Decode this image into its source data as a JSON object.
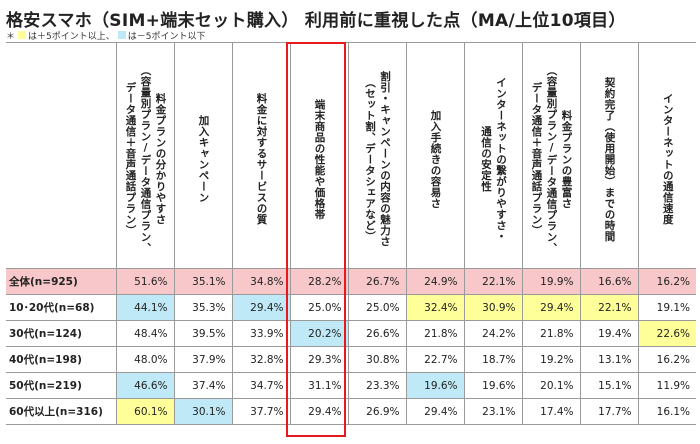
{
  "title": "格安スマホ（SIM+端末セット購入） 利用前に重視した点（MA/上位10項目）",
  "legend": {
    "asterisk": "＊",
    "high_label": "は＋5ポイント以上、",
    "low_label": "は－5ポイント以下",
    "colors": {
      "high": "#ffff99",
      "low": "#bfe9f6",
      "total": "#f7c7c9",
      "frame": "#e6191e"
    }
  },
  "chart_data": {
    "type": "table",
    "highlighted_column": 3,
    "columns": [
      "料金プランの分かりやすさ\n（容量別プラン/データ通信プラン、\nデータ通信＋音声通話プラン）",
      "加入キャンペーン",
      "料金に対するサービスの質",
      "端末商品の性能や価格帯",
      "割引・キャンペーンの内容の魅力さ\n（セット割、データシェアなど）",
      "加入手続きの容易さ",
      "インターネットの繋がりやすさ・\n通信の安定性",
      "料金プランの豊富さ\n（容量別プラン/データ通信プラン、\nデータ通信＋音声通話プラン）",
      "契約完了（使用開始）までの時間",
      "インターネットの通信速度"
    ],
    "rows": [
      {
        "label": "全体(n=925)",
        "total": true,
        "values": [
          "51.6%",
          "35.1%",
          "34.8%",
          "28.2%",
          "26.7%",
          "24.9%",
          "22.1%",
          "19.9%",
          "16.6%",
          "16.2%"
        ],
        "marks": [
          "",
          "",
          "",
          "",
          "",
          "",
          "",
          "",
          "",
          ""
        ]
      },
      {
        "label": "10･20代(n=68)",
        "values": [
          "44.1%",
          "35.3%",
          "29.4%",
          "25.0%",
          "25.0%",
          "32.4%",
          "30.9%",
          "29.4%",
          "22.1%",
          "19.1%"
        ],
        "marks": [
          "lo",
          "",
          "lo",
          "",
          "",
          "hi",
          "hi",
          "hi",
          "hi",
          ""
        ]
      },
      {
        "label": "30代(n=124)",
        "values": [
          "48.4%",
          "39.5%",
          "33.9%",
          "20.2%",
          "26.6%",
          "21.8%",
          "24.2%",
          "21.8%",
          "19.4%",
          "22.6%"
        ],
        "marks": [
          "",
          "",
          "",
          "lo",
          "",
          "",
          "",
          "",
          "",
          "hi"
        ]
      },
      {
        "label": "40代(n=198)",
        "values": [
          "48.0%",
          "37.9%",
          "32.8%",
          "29.3%",
          "30.8%",
          "22.7%",
          "18.7%",
          "19.2%",
          "13.1%",
          "16.2%"
        ],
        "marks": [
          "",
          "",
          "",
          "",
          "",
          "",
          "",
          "",
          "",
          ""
        ]
      },
      {
        "label": "50代(n=219)",
        "values": [
          "46.6%",
          "37.4%",
          "34.7%",
          "31.1%",
          "23.3%",
          "19.6%",
          "19.6%",
          "20.1%",
          "15.1%",
          "11.9%"
        ],
        "marks": [
          "lo",
          "",
          "",
          "",
          "",
          "lo",
          "",
          "",
          "",
          ""
        ]
      },
      {
        "label": "60代以上(n=316)",
        "values": [
          "60.1%",
          "30.1%",
          "37.7%",
          "29.4%",
          "26.9%",
          "29.4%",
          "23.1%",
          "17.4%",
          "17.7%",
          "16.1%"
        ],
        "marks": [
          "hi",
          "lo",
          "",
          "",
          "",
          "",
          "",
          "",
          "",
          ""
        ]
      }
    ]
  }
}
